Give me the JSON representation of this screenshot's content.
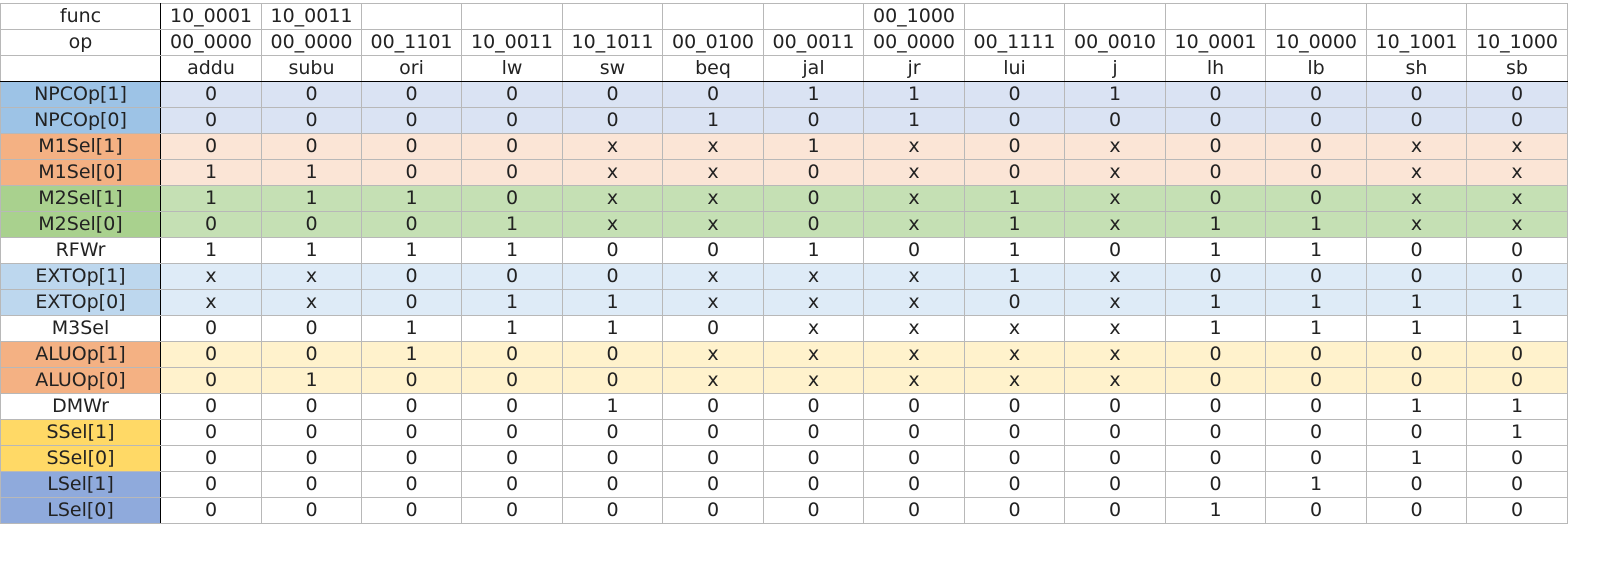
{
  "colors": {
    "npc_label": "#9dc3e6",
    "npc_row": "#dae3f3",
    "m1_label": "#f4b183",
    "m1_row": "#fbe5d6",
    "m2_label": "#a9d18e",
    "m2_row": "#c5e0b4",
    "ext_label": "#bdd7ee",
    "ext_row": "#deebf7",
    "alu_label": "#f4b183",
    "alu_row": "#fff2cc",
    "ssel_label": "#ffd966",
    "lsel_label": "#8faadc",
    "plain": "#ffffff"
  },
  "header": {
    "func_label": "func",
    "op_label": "op",
    "func": [
      "10_0001",
      "10_0011",
      "",
      "",
      "",
      "",
      "",
      "00_1000",
      "",
      "",
      "",
      "",
      "",
      ""
    ],
    "op": [
      "00_0000",
      "00_0000",
      "00_1101",
      "10_0011",
      "10_1011",
      "00_0100",
      "00_0011",
      "00_0000",
      "00_1111",
      "00_0010",
      "10_0001",
      "10_0000",
      "10_1001",
      "10_1000"
    ],
    "instructions": [
      "addu",
      "subu",
      "ori",
      "lw",
      "sw",
      "beq",
      "jal",
      "jr",
      "lui",
      "j",
      "lh",
      "lb",
      "sh",
      "sb"
    ]
  },
  "signals": [
    {
      "name": "NPCOp[1]",
      "group": "npc",
      "values": [
        "0",
        "0",
        "0",
        "0",
        "0",
        "0",
        "1",
        "1",
        "0",
        "1",
        "0",
        "0",
        "0",
        "0"
      ]
    },
    {
      "name": "NPCOp[0]",
      "group": "npc",
      "values": [
        "0",
        "0",
        "0",
        "0",
        "0",
        "1",
        "0",
        "1",
        "0",
        "0",
        "0",
        "0",
        "0",
        "0"
      ]
    },
    {
      "name": "M1Sel[1]",
      "group": "m1",
      "values": [
        "0",
        "0",
        "0",
        "0",
        "x",
        "x",
        "1",
        "x",
        "0",
        "x",
        "0",
        "0",
        "x",
        "x"
      ]
    },
    {
      "name": "M1Sel[0]",
      "group": "m1",
      "values": [
        "1",
        "1",
        "0",
        "0",
        "x",
        "x",
        "0",
        "x",
        "0",
        "x",
        "0",
        "0",
        "x",
        "x"
      ]
    },
    {
      "name": "M2Sel[1]",
      "group": "m2",
      "values": [
        "1",
        "1",
        "1",
        "0",
        "x",
        "x",
        "0",
        "x",
        "1",
        "x",
        "0",
        "0",
        "x",
        "x"
      ]
    },
    {
      "name": "M2Sel[0]",
      "group": "m2",
      "values": [
        "0",
        "0",
        "0",
        "1",
        "x",
        "x",
        "0",
        "x",
        "1",
        "x",
        "1",
        "1",
        "x",
        "x"
      ]
    },
    {
      "name": "RFWr",
      "group": "plain",
      "values": [
        "1",
        "1",
        "1",
        "1",
        "0",
        "0",
        "1",
        "0",
        "1",
        "0",
        "1",
        "1",
        "0",
        "0"
      ]
    },
    {
      "name": "EXTOp[1]",
      "group": "ext",
      "values": [
        "x",
        "x",
        "0",
        "0",
        "0",
        "x",
        "x",
        "x",
        "1",
        "x",
        "0",
        "0",
        "0",
        "0"
      ]
    },
    {
      "name": "EXTOp[0]",
      "group": "ext",
      "values": [
        "x",
        "x",
        "0",
        "1",
        "1",
        "x",
        "x",
        "x",
        "0",
        "x",
        "1",
        "1",
        "1",
        "1"
      ]
    },
    {
      "name": "M3Sel",
      "group": "plain",
      "values": [
        "0",
        "0",
        "1",
        "1",
        "1",
        "0",
        "x",
        "x",
        "x",
        "x",
        "1",
        "1",
        "1",
        "1"
      ]
    },
    {
      "name": "ALUOp[1]",
      "group": "alu",
      "values": [
        "0",
        "0",
        "1",
        "0",
        "0",
        "x",
        "x",
        "x",
        "x",
        "x",
        "0",
        "0",
        "0",
        "0"
      ]
    },
    {
      "name": "ALUOp[0]",
      "group": "alu",
      "values": [
        "0",
        "1",
        "0",
        "0",
        "0",
        "x",
        "x",
        "x",
        "x",
        "x",
        "0",
        "0",
        "0",
        "0"
      ]
    },
    {
      "name": "DMWr",
      "group": "plain",
      "values": [
        "0",
        "0",
        "0",
        "0",
        "1",
        "0",
        "0",
        "0",
        "0",
        "0",
        "0",
        "0",
        "1",
        "1"
      ]
    },
    {
      "name": "SSel[1]",
      "group": "ssel",
      "values": [
        "0",
        "0",
        "0",
        "0",
        "0",
        "0",
        "0",
        "0",
        "0",
        "0",
        "0",
        "0",
        "0",
        "1"
      ]
    },
    {
      "name": "SSel[0]",
      "group": "ssel",
      "values": [
        "0",
        "0",
        "0",
        "0",
        "0",
        "0",
        "0",
        "0",
        "0",
        "0",
        "0",
        "0",
        "1",
        "0"
      ]
    },
    {
      "name": "LSel[1]",
      "group": "lsel",
      "values": [
        "0",
        "0",
        "0",
        "0",
        "0",
        "0",
        "0",
        "0",
        "0",
        "0",
        "0",
        "1",
        "0",
        "0"
      ]
    },
    {
      "name": "LSel[0]",
      "group": "lsel",
      "values": [
        "0",
        "0",
        "0",
        "0",
        "0",
        "0",
        "0",
        "0",
        "0",
        "0",
        "1",
        "0",
        "0",
        "0"
      ]
    }
  ]
}
